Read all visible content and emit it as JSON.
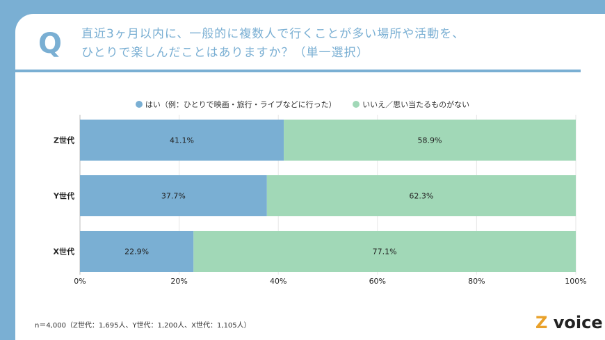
{
  "header": {
    "q_mark": "Q",
    "title_line1": "直近3ヶ月以内に、一般的に複数人で行くことが多い場所や活動を、",
    "title_line2": "ひとりで楽しんだことはありますか？（単一選択）"
  },
  "footnote": "n＝4,000（Z世代：1,695人、Y世代：1,200人、X世代：1,105人）",
  "logo": {
    "mark": "Z",
    "text": "voice"
  },
  "chart_data": {
    "type": "bar",
    "orientation": "horizontal",
    "stacked": true,
    "categories": [
      "Z世代",
      "Y世代",
      "X世代"
    ],
    "series": [
      {
        "name": "はい（例：ひとりで映画・旅行・ライブなどに行った）",
        "values": [
          41.1,
          37.7,
          22.9
        ],
        "color": "#7aafd3"
      },
      {
        "name": "いいえ／思い当たるものがない",
        "values": [
          58.9,
          62.3,
          77.1
        ],
        "color": "#a1d8b7"
      }
    ],
    "labels": [
      [
        "41.1%",
        "37.7%",
        "22.9%"
      ],
      [
        "58.9%",
        "62.3%",
        "77.1%"
      ]
    ],
    "xticks": [
      "0%",
      "20%",
      "40%",
      "60%",
      "80%",
      "100%"
    ],
    "xlim": [
      0,
      100
    ],
    "grid": true,
    "legend": "top"
  }
}
